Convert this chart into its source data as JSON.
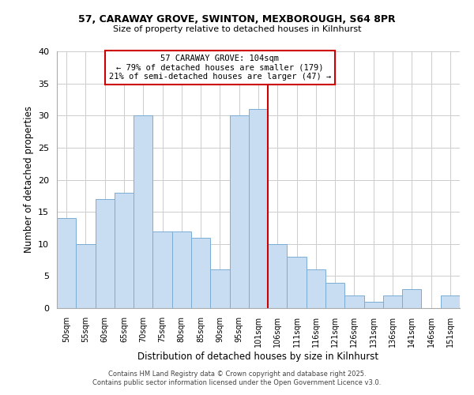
{
  "title1": "57, CARAWAY GROVE, SWINTON, MEXBOROUGH, S64 8PR",
  "title2": "Size of property relative to detached houses in Kilnhurst",
  "xlabel": "Distribution of detached houses by size in Kilnhurst",
  "ylabel": "Number of detached properties",
  "categories": [
    "50sqm",
    "55sqm",
    "60sqm",
    "65sqm",
    "70sqm",
    "75sqm",
    "80sqm",
    "85sqm",
    "90sqm",
    "95sqm",
    "101sqm",
    "106sqm",
    "111sqm",
    "116sqm",
    "121sqm",
    "126sqm",
    "131sqm",
    "136sqm",
    "141sqm",
    "146sqm",
    "151sqm"
  ],
  "values": [
    14,
    10,
    17,
    18,
    30,
    12,
    12,
    11,
    6,
    30,
    31,
    10,
    8,
    6,
    4,
    2,
    1,
    2,
    3,
    0,
    2
  ],
  "bar_color": "#c9ddf2",
  "bar_edge_color": "#7aadd4",
  "vline_color": "#cc0000",
  "ylim": [
    0,
    40
  ],
  "yticks": [
    0,
    5,
    10,
    15,
    20,
    25,
    30,
    35,
    40
  ],
  "annotation_title": "57 CARAWAY GROVE: 104sqm",
  "annotation_line1": "← 79% of detached houses are smaller (179)",
  "annotation_line2": "21% of semi-detached houses are larger (47) →",
  "annotation_box_color": "#ffffff",
  "annotation_box_edge": "#cc0000",
  "footer1": "Contains HM Land Registry data © Crown copyright and database right 2025.",
  "footer2": "Contains public sector information licensed under the Open Government Licence v3.0.",
  "background_color": "#ffffff",
  "grid_color": "#cccccc"
}
